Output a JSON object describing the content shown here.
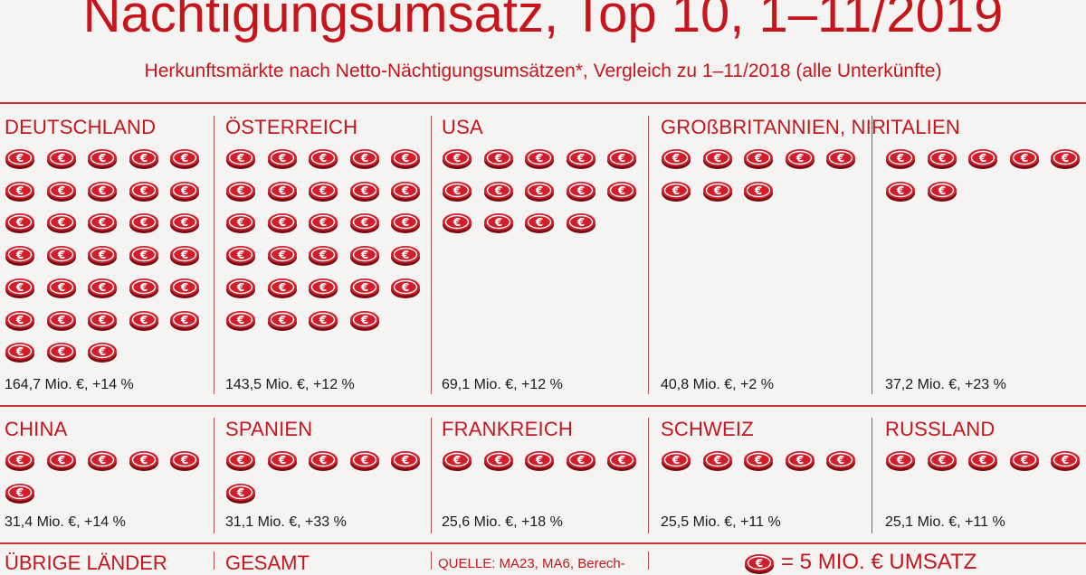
{
  "header": {
    "title": "Nächtigungsumsatz, Top 10, 1–11/2019",
    "subtitle": "Herkunftsmärkte nach Netto-Nächtigungsumsätzen*, Vergleich zu 1–11/2018 (alle Unterkünfte)"
  },
  "colors": {
    "accent": "#c4161c",
    "coin_fill": "#d21e2b",
    "background": "#f6f4f3",
    "text": "#1a1a1a"
  },
  "icons": {
    "coin": "euro-coin-icon"
  },
  "chart_data": {
    "type": "pictogram",
    "title": "Nächtigungsumsatz, Top 10, 1–11/2019",
    "subtitle": "Herkunftsmärkte nach Netto-Nächtigungsumsätzen*, Vergleich zu 1–11/2018 (alle Unterkünfte)",
    "unit_per_icon": 5,
    "countries": [
      {
        "name": "DEUTSCHLAND",
        "value": 164.7,
        "change_pct": 14,
        "coins": 33,
        "label": "164,7 Mio. €, +14 %"
      },
      {
        "name": "ÖSTERREICH",
        "value": 143.5,
        "change_pct": 12,
        "coins": 29,
        "label": "143,5 Mio. €, +12 %"
      },
      {
        "name": "USA",
        "value": 69.1,
        "change_pct": 12,
        "coins": 14,
        "label": "69,1 Mio. €, +12 %"
      },
      {
        "name": "GROßBRITANNIEN, NIR",
        "value": 40.8,
        "change_pct": 2,
        "coins": 8,
        "label": "40,8 Mio. €, +2 %"
      },
      {
        "name": "ITALIEN",
        "value": 37.2,
        "change_pct": 23,
        "coins": 7,
        "label": "37,2 Mio. €, +23 %"
      },
      {
        "name": "CHINA",
        "value": 31.4,
        "change_pct": 14,
        "coins": 6,
        "label": "31,4 Mio. €, +14 %"
      },
      {
        "name": "SPANIEN",
        "value": 31.1,
        "change_pct": 33,
        "coins": 6,
        "label": "31,1 Mio. €, +33 %"
      },
      {
        "name": "FRANKREICH",
        "value": 25.6,
        "change_pct": 18,
        "coins": 5,
        "label": "25,6 Mio. €, +18 %"
      },
      {
        "name": "SCHWEIZ",
        "value": 25.5,
        "change_pct": 11,
        "coins": 5,
        "label": "25,5 Mio. €, +11 %"
      },
      {
        "name": "RUSSLAND",
        "value": 25.1,
        "change_pct": 11,
        "coins": 5,
        "label": "25,1 Mio. €, +11 %"
      }
    ]
  },
  "bottom": {
    "other_label": "ÜBRIGE LÄNDER",
    "total_label": "GESAMT",
    "source_label": "QUELLE: MA23, MA6, Berech-",
    "legend_label": "= 5 MIO. € UMSATZ"
  }
}
